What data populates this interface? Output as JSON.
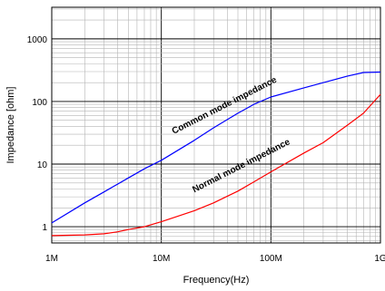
{
  "chart_data": {
    "type": "line",
    "xlabel": "Frequency(Hz)",
    "ylabel": "Impedance [ohm]",
    "x_scale": "log",
    "y_scale": "log",
    "xlim": [
      1000000,
      1000000000
    ],
    "ylim": [
      0.55,
      3200
    ],
    "grid": true,
    "x_ticks": [
      {
        "value": 1000000,
        "label": "1M"
      },
      {
        "value": 10000000,
        "label": "10M"
      },
      {
        "value": 100000000,
        "label": "100M"
      },
      {
        "value": 1000000000,
        "label": "1G"
      }
    ],
    "y_ticks": [
      {
        "value": 1,
        "label": "1"
      },
      {
        "value": 10,
        "label": "10"
      },
      {
        "value": 100,
        "label": "100"
      },
      {
        "value": 1000,
        "label": "1000"
      }
    ],
    "series": [
      {
        "label": "Common mode impedance",
        "color": "#0000ff",
        "x": [
          1000000,
          2000000,
          3000000,
          5000000,
          7000000,
          10000000,
          20000000,
          30000000,
          50000000,
          70000000,
          100000000,
          200000000,
          300000000,
          500000000,
          700000000,
          1000000000
        ],
        "y": [
          1.15,
          2.4,
          3.6,
          6.0,
          8.4,
          11.5,
          24,
          38,
          65,
          90,
          118,
          165,
          200,
          255,
          290,
          295
        ]
      },
      {
        "label": "Normal mode impedance",
        "color": "#ff0000",
        "x": [
          1000000,
          2000000,
          3000000,
          4000000,
          5000000,
          7000000,
          10000000,
          20000000,
          30000000,
          50000000,
          70000000,
          100000000,
          200000000,
          300000000,
          500000000,
          700000000,
          1000000000
        ],
        "y": [
          0.72,
          0.74,
          0.77,
          0.83,
          0.9,
          1.0,
          1.2,
          1.8,
          2.4,
          3.7,
          5.2,
          7.5,
          15,
          22,
          42,
          65,
          130
        ]
      }
    ],
    "annotations": [
      {
        "text": "Common mode impedance",
        "x": 13000000,
        "y": 30
      },
      {
        "text": "Normal mode impedance",
        "x": 20000000,
        "y": 3.5
      }
    ]
  }
}
